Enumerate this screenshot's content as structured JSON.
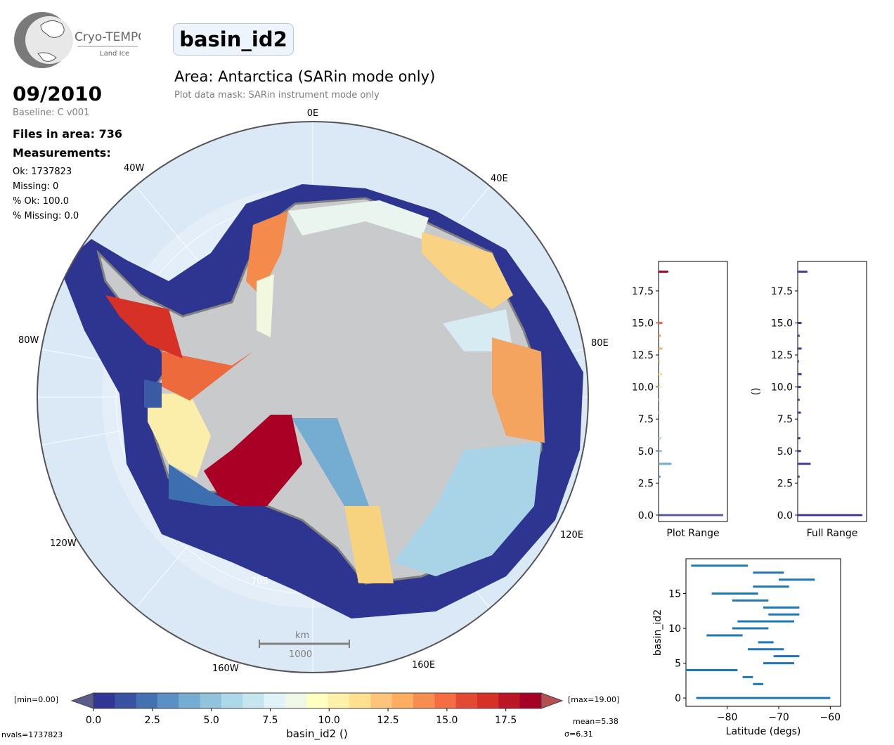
{
  "logo": {
    "name": "Cryo-TEMPO",
    "sub": "Land Ice"
  },
  "title": "basin_id2",
  "area_title": "Area: Antarctica (SARin mode only)",
  "mask_text": "Plot data mask: SARin instrument mode only",
  "date": "09/2010",
  "baseline": "Baseline: C v001",
  "files_in_area": "Files in area: 736",
  "measurements_label": "Measurements:",
  "stats": {
    "ok": "Ok: 1737823",
    "missing": "Missing: 0",
    "pct_ok": "% Ok: 100.0",
    "pct_missing": "% Missing: 0.0"
  },
  "map": {
    "graticule_labels": {
      "e0": "0E",
      "e40": "40E",
      "w40": "40W",
      "e80": "80E",
      "w80": "80W",
      "e120": "120E",
      "w120": "120W",
      "e160": "160E",
      "w160": "160W",
      "s70": "70S"
    },
    "scalebar": {
      "unit": "km",
      "value": "1000"
    },
    "colors": {
      "ocean": "#dbe9f6",
      "ice": "#c8cacb",
      "coast": "#808080",
      "track_low": "#313695",
      "track_high": "#a50026"
    }
  },
  "colorbar": {
    "min_label": "[min=0.00]",
    "max_label": "[max=19.00]",
    "ticks": [
      "0.0",
      "2.5",
      "5.0",
      "7.5",
      "10.0",
      "12.5",
      "15.0",
      "17.5"
    ],
    "label": "basin_id2 ()",
    "nvals": "nvals=1737823",
    "mean": "mean=5.38",
    "sigma": "σ=6.31",
    "range": [
      0,
      19
    ],
    "colors": [
      "#313695",
      "#3a52a2",
      "#4472b0",
      "#5a90c3",
      "#74add1",
      "#91c3dc",
      "#abd9e9",
      "#c6e6ef",
      "#e0f3f8",
      "#eff8e6",
      "#ffffbf",
      "#fef0a9",
      "#fee090",
      "#fdc57b",
      "#fdae61",
      "#f88d52",
      "#f46d43",
      "#e34a33",
      "#d73027",
      "#bb1526",
      "#a50026"
    ]
  },
  "chart_data": [
    {
      "type": "bar",
      "orientation": "horizontal",
      "xlabel": "Plot Range",
      "ylabel": "",
      "ylim": [
        -0.5,
        19.8
      ],
      "yticks": [
        "0.0",
        "2.5",
        "5.0",
        "7.5",
        "10.0",
        "12.5",
        "15.0",
        "17.5"
      ],
      "categories": [
        0,
        1,
        2,
        3,
        4,
        5,
        6,
        7,
        8,
        9,
        10,
        11,
        12,
        13,
        14,
        15,
        16,
        17,
        18,
        19
      ],
      "values": [
        1.0,
        0.0,
        0.0,
        0.03,
        0.2,
        0.05,
        0.04,
        0.0,
        0.05,
        0.03,
        0.05,
        0.06,
        0.02,
        0.06,
        0.03,
        0.06,
        0.0,
        0.0,
        0.0,
        0.15
      ]
    },
    {
      "type": "bar",
      "orientation": "horizontal",
      "xlabel": "Full Range",
      "ylabel": "()",
      "ylim": [
        -0.5,
        19.8
      ],
      "yticks": [
        "0.0",
        "2.5",
        "5.0",
        "7.5",
        "10.0",
        "12.5",
        "15.0",
        "17.5"
      ],
      "categories": [
        0,
        1,
        2,
        3,
        4,
        5,
        6,
        7,
        8,
        9,
        10,
        11,
        12,
        13,
        14,
        15,
        16,
        17,
        18,
        19
      ],
      "values": [
        1.0,
        0.0,
        0.0,
        0.03,
        0.2,
        0.05,
        0.04,
        0.0,
        0.05,
        0.03,
        0.05,
        0.06,
        0.02,
        0.06,
        0.03,
        0.06,
        0.0,
        0.0,
        0.0,
        0.15
      ]
    },
    {
      "type": "range",
      "xlabel": "Latitude (degs)",
      "ylabel": "basin_id2",
      "xlim": [
        -88,
        -58
      ],
      "xticks": [
        "−80",
        "−70",
        "−60"
      ],
      "yticks": [
        "0",
        "5",
        "10",
        "15"
      ],
      "ylim": [
        -1.2,
        20
      ],
      "ranges": [
        {
          "y": 0,
          "x0": -86,
          "x1": -60
        },
        {
          "y": 2,
          "x0": -75,
          "x1": -73
        },
        {
          "y": 3,
          "x0": -77,
          "x1": -75
        },
        {
          "y": 4,
          "x0": -88,
          "x1": -78
        },
        {
          "y": 5,
          "x0": -73,
          "x1": -67
        },
        {
          "y": 6,
          "x0": -71,
          "x1": -66
        },
        {
          "y": 7,
          "x0": -76,
          "x1": -69
        },
        {
          "y": 8,
          "x0": -74,
          "x1": -71
        },
        {
          "y": 9,
          "x0": -84,
          "x1": -77
        },
        {
          "y": 10,
          "x0": -79,
          "x1": -72
        },
        {
          "y": 11,
          "x0": -78,
          "x1": -67
        },
        {
          "y": 12,
          "x0": -72,
          "x1": -66
        },
        {
          "y": 13,
          "x0": -73,
          "x1": -66
        },
        {
          "y": 14,
          "x0": -79,
          "x1": -72
        },
        {
          "y": 15,
          "x0": -83,
          "x1": -74
        },
        {
          "y": 16,
          "x0": -75,
          "x1": -68
        },
        {
          "y": 17,
          "x0": -70,
          "x1": -63
        },
        {
          "y": 18,
          "x0": -75,
          "x1": -69
        },
        {
          "y": 19,
          "x0": -87,
          "x1": -76
        }
      ]
    }
  ]
}
